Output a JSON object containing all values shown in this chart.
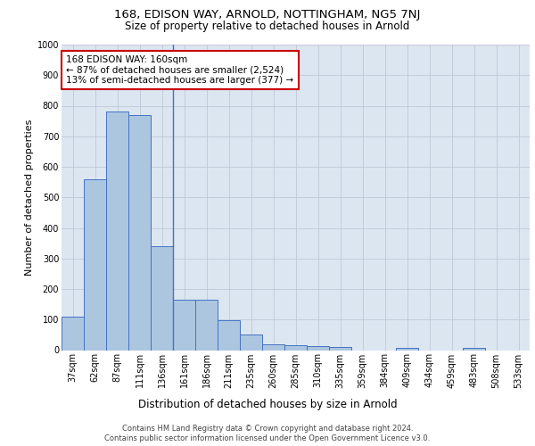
{
  "title": "168, EDISON WAY, ARNOLD, NOTTINGHAM, NG5 7NJ",
  "subtitle": "Size of property relative to detached houses in Arnold",
  "xlabel": "Distribution of detached houses by size in Arnold",
  "ylabel": "Number of detached properties",
  "categories": [
    "37sqm",
    "62sqm",
    "87sqm",
    "111sqm",
    "136sqm",
    "161sqm",
    "186sqm",
    "211sqm",
    "235sqm",
    "260sqm",
    "285sqm",
    "310sqm",
    "335sqm",
    "359sqm",
    "384sqm",
    "409sqm",
    "434sqm",
    "459sqm",
    "483sqm",
    "508sqm",
    "533sqm"
  ],
  "values": [
    110,
    560,
    780,
    770,
    340,
    165,
    165,
    98,
    52,
    18,
    15,
    12,
    10,
    0,
    0,
    8,
    0,
    0,
    8,
    0,
    0
  ],
  "bar_color": "#adc6e0",
  "bar_edge_color": "#4472c4",
  "background_color": "#dce6f1",
  "annotation_text": "168 EDISON WAY: 160sqm\n← 87% of detached houses are smaller (2,524)\n13% of semi-detached houses are larger (377) →",
  "annotation_box_color": "#ffffff",
  "annotation_box_edge_color": "#cc0000",
  "vline_x": 4.5,
  "ylim": [
    0,
    1000
  ],
  "yticks": [
    0,
    100,
    200,
    300,
    400,
    500,
    600,
    700,
    800,
    900,
    1000
  ],
  "footer_line1": "Contains HM Land Registry data © Crown copyright and database right 2024.",
  "footer_line2": "Contains public sector information licensed under the Open Government Licence v3.0.",
  "title_fontsize": 9.5,
  "subtitle_fontsize": 8.5,
  "ylabel_fontsize": 8,
  "xlabel_fontsize": 8.5,
  "tick_fontsize": 7,
  "annotation_fontsize": 7.5,
  "footer_fontsize": 6
}
